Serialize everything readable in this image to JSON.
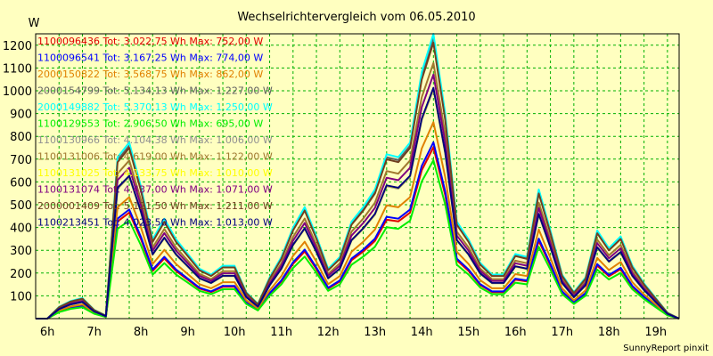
{
  "chart_data": {
    "type": "line",
    "title": "Wechselrichtervergleich vom 06.05.2010",
    "ylabel": "W",
    "footer": "SunnyReport pinxit",
    "ylim": [
      0,
      1250
    ],
    "yticks": [
      100,
      200,
      300,
      400,
      500,
      600,
      700,
      800,
      900,
      1000,
      1100,
      1200
    ],
    "xticks": [
      "6h",
      "7h",
      "8h",
      "9h",
      "10h",
      "11h",
      "12h",
      "13h",
      "14h",
      "15h",
      "16h",
      "17h",
      "18h",
      "19h"
    ],
    "grid": true,
    "legend_position": "top-left",
    "x": [
      5.5,
      5.75,
      6.0,
      6.25,
      6.5,
      6.75,
      7.0,
      7.25,
      7.5,
      7.75,
      8.0,
      8.25,
      8.5,
      8.75,
      9.0,
      9.25,
      9.5,
      9.75,
      10.0,
      10.25,
      10.5,
      10.75,
      11.0,
      11.25,
      11.5,
      11.75,
      12.0,
      12.25,
      12.5,
      12.75,
      13.0,
      13.25,
      13.5,
      13.75,
      14.0,
      14.25,
      14.5,
      14.75,
      15.0,
      15.25,
      15.5,
      15.75,
      16.0,
      16.25,
      16.5,
      16.75,
      17.0,
      17.25,
      17.5,
      17.75,
      18.0,
      18.25,
      18.5,
      18.75,
      19.0,
      19.25
    ],
    "reference_curve": [
      0,
      0,
      0.04,
      0.06,
      0.07,
      0.03,
      0.01,
      0.55,
      0.6,
      0.45,
      0.27,
      0.34,
      0.27,
      0.22,
      0.17,
      0.15,
      0.18,
      0.18,
      0.09,
      0.05,
      0.14,
      0.21,
      0.31,
      0.38,
      0.28,
      0.17,
      0.21,
      0.33,
      0.38,
      0.44,
      0.56,
      0.55,
      0.6,
      0.84,
      0.97,
      0.7,
      0.33,
      0.27,
      0.19,
      0.15,
      0.15,
      0.22,
      0.21,
      0.44,
      0.3,
      0.15,
      0.09,
      0.14,
      0.3,
      0.24,
      0.28,
      0.18,
      0.12,
      0.07,
      0.02,
      0
    ],
    "series": [
      {
        "name": "1100096436",
        "total": "3.022,75 Wh",
        "max": "752,00 W",
        "peak": 752,
        "color": "#e00000"
      },
      {
        "name": "1100096541",
        "total": "3.167,25 Wh",
        "max": "774,00 W",
        "peak": 774,
        "color": "#0000ff"
      },
      {
        "name": "2000150822",
        "total": "3.568,75 Wh",
        "max": "862,00 W",
        "peak": 862,
        "color": "#e08000"
      },
      {
        "name": "2000154799",
        "total": "5.134,13 Wh",
        "max": "1.227,00 W",
        "peak": 1227,
        "color": "#606060"
      },
      {
        "name": "2000149882",
        "total": "5.370,13 Wh",
        "max": "1.250,00 W",
        "peak": 1250,
        "color": "#00ffff"
      },
      {
        "name": "1100129553",
        "total": "2.906,50 Wh",
        "max": "695,00 W",
        "peak": 695,
        "color": "#00ee00"
      },
      {
        "name": "1100130966",
        "total": "4.104,38 Wh",
        "max": "1.006,00 W",
        "peak": 1006,
        "color": "#909090"
      },
      {
        "name": "1100131006",
        "total": "4.619,00 Wh",
        "max": "1.122,00 W",
        "peak": 1122,
        "color": "#a07830"
      },
      {
        "name": "1100131025",
        "total": "4.133,75 Wh",
        "max": "1.010,00 W",
        "peak": 1010,
        "color": "#ffff00"
      },
      {
        "name": "1100131074",
        "total": "4.437,00 Wh",
        "max": "1.071,00 W",
        "peak": 1071,
        "color": "#800080"
      },
      {
        "name": "2000001409",
        "total": "5.121,50 Wh",
        "max": "1.211,00 W",
        "peak": 1211,
        "color": "#704020"
      },
      {
        "name": "1100213451",
        "total": "4.023,50 Wh",
        "max": "1.013,00 W",
        "peak": 1013,
        "color": "#000080"
      }
    ]
  }
}
